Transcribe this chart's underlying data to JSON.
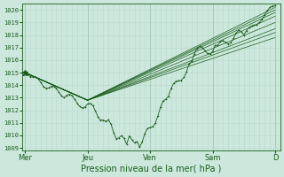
{
  "title": "Pression niveau de la mer( hPa )",
  "ylabel_values": [
    1009,
    1010,
    1011,
    1012,
    1013,
    1014,
    1015,
    1016,
    1017,
    1018,
    1019,
    1020
  ],
  "ylim": [
    1008.8,
    1020.5
  ],
  "x_tick_labels": [
    "Mer",
    "Jeu",
    "Ven",
    "Sam",
    "D"
  ],
  "x_tick_positions": [
    0,
    48,
    96,
    144,
    192
  ],
  "xlim": [
    -2,
    196
  ],
  "bg_color": "#cce8dc",
  "grid_minor_color": "#b8d8cc",
  "grid_major_color": "#a0c8b8",
  "line_color": "#1a5c1a",
  "n_points": 193,
  "convergence_t": 48,
  "convergence_val": 1012.8,
  "ensemble_starts": [
    1015.0,
    1015.0,
    1015.0,
    1015.0,
    1015.0,
    1015.0,
    1015.0,
    1015.0
  ],
  "ensemble_ends": [
    1020.2,
    1019.5,
    1019.0,
    1018.5,
    1018.2,
    1017.8,
    1019.8,
    1020.0
  ]
}
